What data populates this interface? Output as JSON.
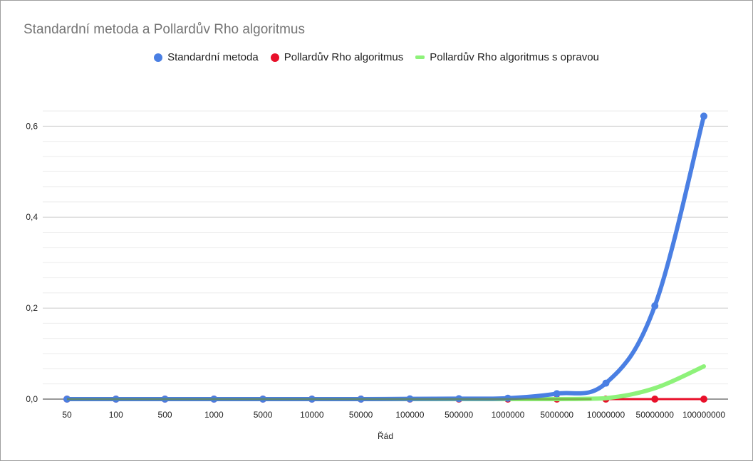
{
  "chart_data": {
    "type": "line",
    "title": "Standardní metoda a Pollardův Rho algoritmus",
    "xlabel": "Řád",
    "ylabel": "",
    "categories": [
      "50",
      "100",
      "500",
      "1000",
      "5000",
      "10000",
      "50000",
      "100000",
      "500000",
      "1000000",
      "5000000",
      "10000000",
      "50000000",
      "100000000"
    ],
    "y_ticks": [
      "0,0",
      "0,2",
      "0,4",
      "0,6"
    ],
    "ylim": [
      0,
      0.66
    ],
    "grid": true,
    "legend_position": "top",
    "series": [
      {
        "name": "Standardní metoda",
        "color": "#4a7fe3",
        "marker": "dot",
        "values": [
          0,
          0,
          0,
          0,
          0,
          0,
          0,
          0.0005,
          0.001,
          0.002,
          0.012,
          0.035,
          0.205,
          0.622
        ]
      },
      {
        "name": "Pollardův Rho algoritmus",
        "color": "#e8102a",
        "marker": "dot",
        "values": [
          0,
          0,
          0,
          0,
          0,
          0,
          0,
          0,
          0,
          0,
          0,
          0,
          0,
          0
        ]
      },
      {
        "name": "Pollardův Rho algoritmus s opravou",
        "color": "#8ef27a",
        "marker": "dash",
        "values": [
          0,
          0,
          0,
          0,
          0,
          0,
          0,
          0,
          0,
          0,
          0,
          0.002,
          0.024,
          0.072
        ]
      }
    ]
  }
}
